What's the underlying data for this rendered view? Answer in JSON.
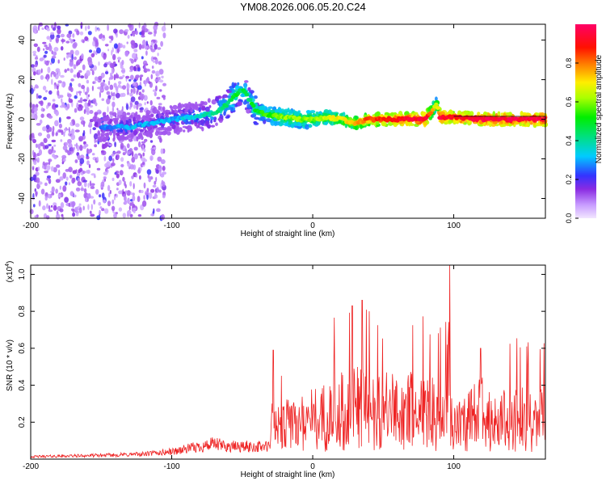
{
  "title": "YM08.2026.006.05.20.C24",
  "chart_data": [
    {
      "type": "heatmap",
      "name": "spectrogram",
      "xlabel": "Height of straight line (km)",
      "ylabel": "Frequency (Hz)",
      "xlim": [
        -200,
        165
      ],
      "ylim": [
        -50,
        48
      ],
      "xticks": [
        -200,
        -100,
        0,
        100
      ],
      "yticks": [
        -40,
        -20,
        0,
        20,
        40
      ],
      "xtick_labels": [
        "-200",
        "-100",
        "0",
        "100"
      ],
      "ytick_labels": [
        "-40",
        "-20",
        "0",
        "20",
        "40"
      ],
      "colorbar": {
        "label": "Normalized spectral amplitude",
        "range": [
          0,
          1
        ],
        "ticks": [
          0.0,
          0.2,
          0.4,
          0.6,
          0.8
        ],
        "tick_labels": [
          "0.0",
          "0.2",
          "0.4",
          "0.6",
          "0.8"
        ]
      },
      "ridge": {
        "x": [
          -150,
          -130,
          -115,
          -100,
          -85,
          -70,
          -60,
          -55,
          -50,
          -45,
          -40,
          -30,
          -20,
          -10,
          0,
          10,
          20,
          30,
          40,
          60,
          80,
          88,
          90,
          100,
          120,
          140,
          160
        ],
        "frequency": [
          -4,
          -4,
          -2,
          0,
          1,
          3,
          8,
          12,
          15,
          10,
          4,
          2,
          1,
          0,
          0,
          1,
          0,
          -2,
          0,
          0,
          0,
          8,
          1,
          1,
          0,
          0,
          0
        ],
        "amplitude": [
          0.25,
          0.3,
          0.3,
          0.3,
          0.35,
          0.4,
          0.45,
          0.5,
          0.45,
          0.45,
          0.5,
          0.55,
          0.6,
          0.6,
          0.6,
          0.65,
          0.7,
          0.75,
          0.85,
          0.9,
          0.95,
          0.6,
          0.95,
          0.9,
          0.95,
          0.95,
          0.95
        ]
      },
      "scatter_region": {
        "x_range": [
          -200,
          -105
        ],
        "frequency_range": [
          -50,
          48
        ],
        "amplitude_range": [
          0.05,
          0.22
        ]
      }
    },
    {
      "type": "line",
      "name": "snr",
      "xlabel": "Height of straight line (km)",
      "ylabel": "SNR (10 * v/v)",
      "scale_label_base": "(x10",
      "scale_label_exp": "4",
      "scale_label_close": ")",
      "xlim": [
        -200,
        165
      ],
      "ylim": [
        0,
        1.05
      ],
      "xticks": [
        -200,
        -100,
        0,
        100
      ],
      "yticks": [
        0.2,
        0.4,
        0.6,
        0.8,
        1.0
      ],
      "xtick_labels": [
        "-200",
        "-100",
        "0",
        "100"
      ],
      "ytick_labels": [
        "0.2",
        "0.4",
        "0.6",
        "0.8",
        "1.0"
      ],
      "color": "#ee2222",
      "envelope": {
        "x": [
          -200,
          -150,
          -120,
          -100,
          -90,
          -80,
          -70,
          -60,
          -50,
          -40,
          -30,
          -28,
          -27,
          -20,
          -10,
          0,
          10,
          20,
          30,
          40,
          50,
          60,
          70,
          80,
          90,
          95,
          97,
          98,
          100,
          110,
          120,
          130,
          140,
          150,
          165
        ],
        "y": [
          0.02,
          0.03,
          0.04,
          0.06,
          0.08,
          0.1,
          0.12,
          0.1,
          0.1,
          0.1,
          0.1,
          0.55,
          0.25,
          0.3,
          0.35,
          0.38,
          0.4,
          0.45,
          0.5,
          0.45,
          0.45,
          0.45,
          0.45,
          0.45,
          0.42,
          0.5,
          1.05,
          0.35,
          0.35,
          0.35,
          0.45,
          0.35,
          0.38,
          0.38,
          0.35
        ]
      },
      "spikes": [
        {
          "x": -28,
          "y": 0.59
        },
        {
          "x": 28,
          "y": 0.83
        },
        {
          "x": 35,
          "y": 0.86
        },
        {
          "x": 97,
          "y": 1.05
        },
        {
          "x": 119,
          "y": 0.6
        }
      ]
    }
  ]
}
